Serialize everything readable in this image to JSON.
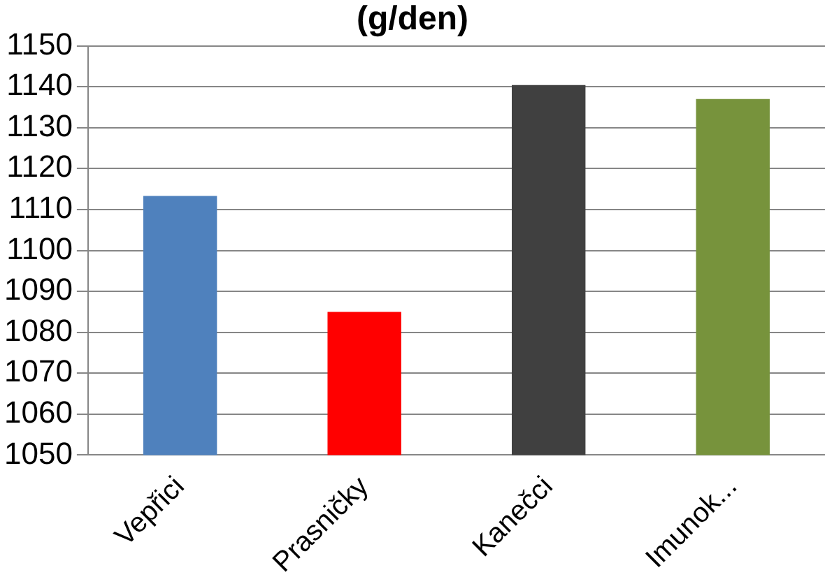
{
  "chart_data": {
    "type": "bar",
    "title": "(g/den)",
    "categories": [
      "Vepřici",
      "Prasničky",
      "Kanečci",
      "Imunok..."
    ],
    "values": [
      1113.3,
      1085,
      1140.4,
      1137
    ],
    "colors": [
      "#4f81bd",
      "#ff0000",
      "#404040",
      "#77933c"
    ],
    "ylim": [
      1050,
      1150
    ],
    "yticks": [
      1050,
      1060,
      1070,
      1080,
      1090,
      1100,
      1110,
      1120,
      1130,
      1140,
      1150
    ],
    "grid": "y",
    "legend": false
  }
}
